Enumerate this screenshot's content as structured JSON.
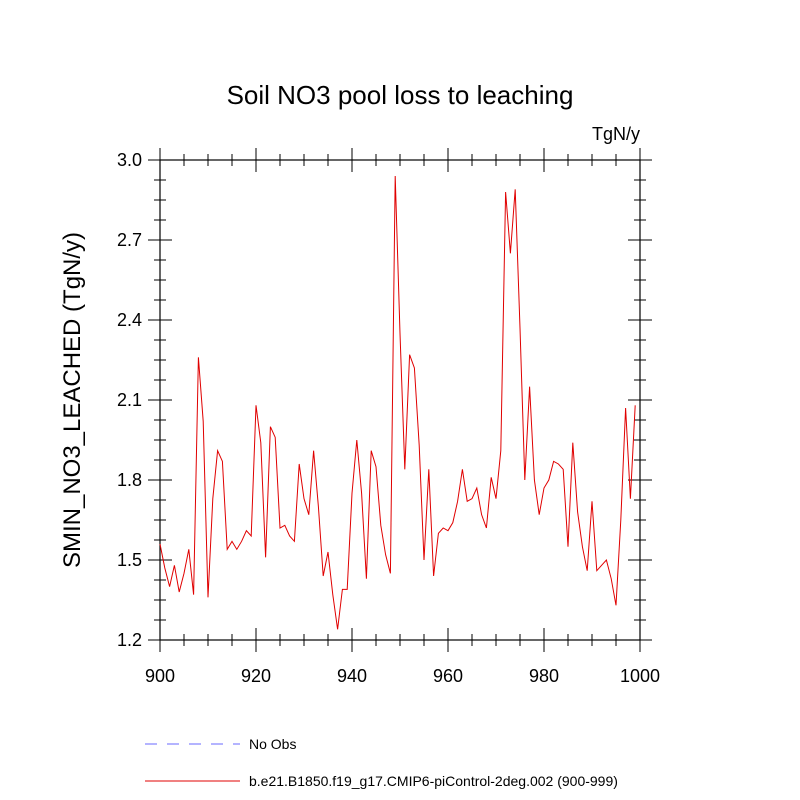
{
  "chart_data": {
    "type": "line",
    "title": "Soil NO3 pool loss to leaching",
    "units": "TgN/y",
    "xlabel": "",
    "ylabel": "SMIN_NO3_LEACHED  (TgN/y)",
    "xlim": [
      900,
      1000
    ],
    "ylim": [
      1.2,
      3.0
    ],
    "x_ticks": [
      "900",
      "920",
      "940",
      "960",
      "980",
      "1000"
    ],
    "y_ticks": [
      "1.2",
      "1.5",
      "1.8",
      "2.1",
      "2.4",
      "2.7",
      "3.0"
    ],
    "legend": [
      {
        "label": "No Obs",
        "color": "#6a6aff",
        "style": "dashed"
      },
      {
        "label": "b.e21.B1850.f19_g17.CMIP6-piControl-2deg.002 (900-999)",
        "color": "#e00000",
        "style": "solid"
      }
    ],
    "series": [
      {
        "name": "b.e21.B1850.f19_g17.CMIP6-piControl-2deg.002 (900-999)",
        "color": "#e00000",
        "x_start": 900,
        "values": [
          1.56,
          1.47,
          1.4,
          1.48,
          1.38,
          1.45,
          1.54,
          1.37,
          2.26,
          2.02,
          1.36,
          1.73,
          1.91,
          1.87,
          1.54,
          1.57,
          1.54,
          1.57,
          1.61,
          1.59,
          2.08,
          1.94,
          1.51,
          2.0,
          1.96,
          1.62,
          1.63,
          1.59,
          1.57,
          1.86,
          1.73,
          1.67,
          1.91,
          1.7,
          1.44,
          1.53,
          1.37,
          1.24,
          1.39,
          1.39,
          1.75,
          1.95,
          1.75,
          1.43,
          1.91,
          1.85,
          1.63,
          1.52,
          1.45,
          2.94,
          2.35,
          1.84,
          2.27,
          2.22,
          1.93,
          1.5,
          1.84,
          1.44,
          1.6,
          1.62,
          1.61,
          1.64,
          1.72,
          1.84,
          1.72,
          1.73,
          1.77,
          1.67,
          1.62,
          1.81,
          1.73,
          1.91,
          2.88,
          2.65,
          2.89,
          2.37,
          1.8,
          2.15,
          1.8,
          1.67,
          1.77,
          1.8,
          1.87,
          1.86,
          1.84,
          1.55,
          1.94,
          1.68,
          1.55,
          1.46,
          1.72,
          1.46,
          1.48,
          1.5,
          1.43,
          1.33,
          1.65,
          2.07,
          1.73,
          2.08
        ]
      }
    ]
  }
}
